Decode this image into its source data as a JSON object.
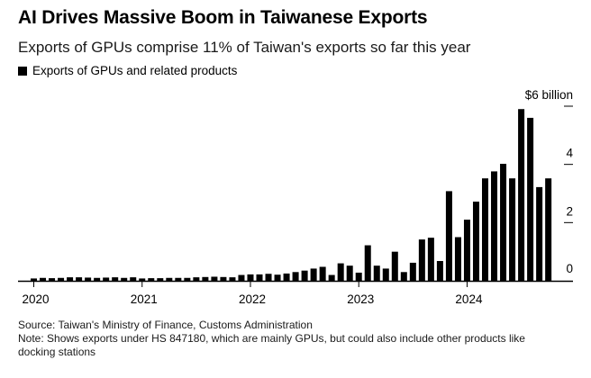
{
  "title": "AI Drives Massive Boom in Taiwanese Exports",
  "subtitle": "Exports of GPUs comprise 11% of Taiwan's exports so far this year",
  "legend": {
    "label": "Exports of GPUs and related products",
    "color": "#000000"
  },
  "source_line": "Source: Taiwan's Ministry of Finance, Customs Administration",
  "note_line1": "Note: Shows exports under HS 847180, which are mainly GPUs, but could also include other products like",
  "note_line2": "docking stations",
  "chart_data": {
    "type": "bar",
    "title": "AI Drives Massive Boom in Taiwanese Exports",
    "subtitle": "Exports of GPUs comprise 11% of Taiwan's exports so far this year",
    "series": [
      {
        "name": "Exports of GPUs and related products",
        "color": "#000000",
        "values": [
          0.08,
          0.1,
          0.09,
          0.1,
          0.12,
          0.12,
          0.11,
          0.1,
          0.11,
          0.12,
          0.1,
          0.12,
          0.08,
          0.09,
          0.09,
          0.1,
          0.1,
          0.1,
          0.12,
          0.13,
          0.14,
          0.13,
          0.12,
          0.2,
          0.22,
          0.22,
          0.24,
          0.21,
          0.25,
          0.3,
          0.35,
          0.42,
          0.48,
          0.2,
          0.6,
          0.52,
          0.28,
          1.22,
          0.52,
          0.42,
          1.0,
          0.3,
          0.62,
          1.42,
          1.48,
          0.68,
          3.08,
          1.5,
          2.1,
          2.72,
          3.52,
          3.76,
          4.02,
          3.52,
          5.9,
          5.6,
          3.22,
          3.52
        ]
      }
    ],
    "x_start": "2020-01",
    "x_frequency": "monthly",
    "x_tick_labels": [
      "2020",
      "2021",
      "2022",
      "2023",
      "2024"
    ],
    "y_tick_labels": [
      "0",
      "2",
      "4",
      "$6 billion"
    ],
    "y_ticks": [
      0,
      2,
      4,
      6
    ],
    "ylim": [
      0,
      6
    ],
    "unit": "$ billion"
  }
}
